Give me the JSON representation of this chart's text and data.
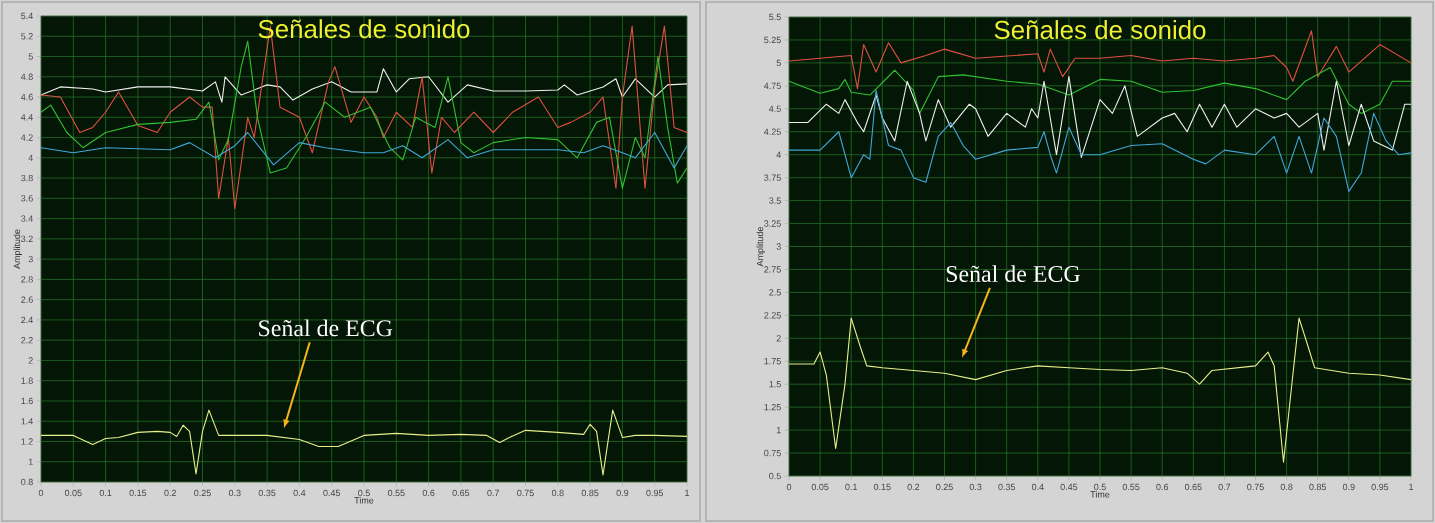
{
  "chart_data": [
    {
      "type": "line",
      "title": "Señales de sonido",
      "xlabel": "Time",
      "ylabel": "Amplitude",
      "xlim": [
        0,
        1
      ],
      "ylim": [
        0.8,
        5.4
      ],
      "grid": true,
      "xticks": [
        0,
        0.05,
        0.1,
        0.15,
        0.2,
        0.25,
        0.3,
        0.35,
        0.4,
        0.45,
        0.5,
        0.55,
        0.6,
        0.65,
        0.7,
        0.75,
        0.8,
        0.85,
        0.9,
        0.95,
        1
      ],
      "yticks": [
        0.8,
        1,
        1.2,
        1.4,
        1.6,
        1.8,
        2,
        2.2,
        2.4,
        2.6,
        2.8,
        3,
        3.2,
        3.4,
        3.6,
        3.8,
        4,
        4.2,
        4.4,
        4.6,
        4.8,
        5,
        5.2,
        5.4
      ],
      "series": [
        {
          "color": "#f0f0f0",
          "x": [
            0,
            0.03,
            0.08,
            0.1,
            0.15,
            0.2,
            0.25,
            0.27,
            0.28,
            0.285,
            0.31,
            0.35,
            0.37,
            0.39,
            0.42,
            0.45,
            0.48,
            0.52,
            0.53,
            0.55,
            0.57,
            0.6,
            0.63,
            0.66,
            0.7,
            0.75,
            0.8,
            0.81,
            0.83,
            0.87,
            0.89,
            0.9,
            0.92,
            0.95,
            0.97,
            1
          ],
          "values": [
            4.62,
            4.7,
            4.68,
            4.65,
            4.7,
            4.7,
            4.66,
            4.75,
            4.55,
            4.8,
            4.62,
            4.72,
            4.7,
            4.57,
            4.68,
            4.75,
            4.65,
            4.65,
            4.88,
            4.65,
            4.78,
            4.8,
            4.55,
            4.72,
            4.66,
            4.66,
            4.67,
            4.72,
            4.62,
            4.7,
            4.78,
            4.6,
            4.78,
            4.6,
            4.72,
            4.73
          ]
        },
        {
          "color": "#e05040",
          "x": [
            0,
            0.03,
            0.06,
            0.08,
            0.1,
            0.12,
            0.15,
            0.18,
            0.2,
            0.23,
            0.25,
            0.265,
            0.275,
            0.29,
            0.3,
            0.32,
            0.33,
            0.355,
            0.37,
            0.4,
            0.42,
            0.445,
            0.455,
            0.48,
            0.5,
            0.52,
            0.53,
            0.55,
            0.575,
            0.59,
            0.605,
            0.62,
            0.64,
            0.67,
            0.7,
            0.73,
            0.77,
            0.8,
            0.82,
            0.85,
            0.87,
            0.89,
            0.9,
            0.915,
            0.935,
            0.95,
            0.965,
            0.98,
            1
          ],
          "values": [
            4.62,
            4.6,
            4.25,
            4.3,
            4.45,
            4.65,
            4.32,
            4.25,
            4.45,
            4.6,
            4.5,
            4.5,
            3.6,
            4.2,
            3.5,
            4.4,
            4.2,
            5.3,
            4.5,
            4.4,
            4.05,
            4.75,
            4.9,
            4.35,
            4.6,
            4.4,
            4.2,
            4.45,
            4.3,
            4.8,
            3.85,
            4.4,
            4.25,
            4.45,
            4.25,
            4.45,
            4.6,
            4.3,
            4.35,
            4.45,
            4.6,
            3.7,
            4.6,
            5.3,
            3.7,
            4.7,
            5.3,
            4.3,
            4.25
          ]
        },
        {
          "color": "#30c030",
          "x": [
            0,
            0.015,
            0.04,
            0.065,
            0.1,
            0.15,
            0.2,
            0.24,
            0.26,
            0.275,
            0.29,
            0.31,
            0.32,
            0.335,
            0.355,
            0.38,
            0.41,
            0.44,
            0.47,
            0.51,
            0.54,
            0.56,
            0.58,
            0.61,
            0.63,
            0.65,
            0.67,
            0.7,
            0.75,
            0.8,
            0.83,
            0.86,
            0.88,
            0.9,
            0.92,
            0.935,
            0.955,
            0.97,
            0.985,
            1
          ],
          "values": [
            4.45,
            4.52,
            4.25,
            4.1,
            4.25,
            4.33,
            4.35,
            4.38,
            4.55,
            3.98,
            4.18,
            4.9,
            5.15,
            4.4,
            3.85,
            3.9,
            4.2,
            4.55,
            4.4,
            4.5,
            4.1,
            3.98,
            4.4,
            4.3,
            4.8,
            4.15,
            4.05,
            4.15,
            4.2,
            4.18,
            4,
            4.35,
            4.4,
            3.7,
            4.2,
            4,
            5,
            4.3,
            3.75,
            3.9
          ]
        },
        {
          "color": "#40a8d8",
          "x": [
            0,
            0.05,
            0.1,
            0.2,
            0.23,
            0.27,
            0.3,
            0.32,
            0.36,
            0.4,
            0.44,
            0.5,
            0.53,
            0.56,
            0.59,
            0.63,
            0.66,
            0.7,
            0.8,
            0.84,
            0.87,
            0.9,
            0.92,
            0.95,
            0.98,
            1
          ],
          "values": [
            4.1,
            4.05,
            4.1,
            4.08,
            4.15,
            4,
            4.12,
            4.25,
            3.93,
            4.15,
            4.1,
            4.05,
            4.05,
            4.12,
            4,
            4.18,
            4,
            4.08,
            4.08,
            4.05,
            4.12,
            4.05,
            4,
            4.25,
            3.9,
            4.12
          ]
        },
        {
          "color": "#e8f08a",
          "x": [
            0,
            0.05,
            0.08,
            0.1,
            0.12,
            0.15,
            0.18,
            0.2,
            0.21,
            0.22,
            0.23,
            0.24,
            0.25,
            0.26,
            0.275,
            0.3,
            0.35,
            0.4,
            0.43,
            0.46,
            0.5,
            0.55,
            0.6,
            0.65,
            0.69,
            0.71,
            0.725,
            0.75,
            0.8,
            0.84,
            0.85,
            0.86,
            0.87,
            0.88,
            0.885,
            0.9,
            0.92,
            0.95,
            1
          ],
          "values": [
            1.26,
            1.26,
            1.17,
            1.23,
            1.24,
            1.29,
            1.3,
            1.29,
            1.25,
            1.36,
            1.3,
            0.88,
            1.3,
            1.51,
            1.26,
            1.26,
            1.26,
            1.22,
            1.15,
            1.15,
            1.26,
            1.28,
            1.26,
            1.27,
            1.26,
            1.19,
            1.24,
            1.31,
            1.29,
            1.27,
            1.37,
            1.3,
            0.87,
            1.3,
            1.51,
            1.24,
            1.26,
            1.26,
            1.25
          ]
        }
      ],
      "annotations": [
        "Señal de ECG"
      ]
    },
    {
      "type": "line",
      "title": "Señales de sonido",
      "xlabel": "Time",
      "ylabel": "Amplitude",
      "xlim": [
        0,
        1
      ],
      "ylim": [
        0.5,
        5.5
      ],
      "grid": true,
      "xticks": [
        0,
        0.05,
        0.1,
        0.15,
        0.2,
        0.25,
        0.3,
        0.35,
        0.4,
        0.45,
        0.5,
        0.55,
        0.6,
        0.65,
        0.7,
        0.75,
        0.8,
        0.85,
        0.9,
        0.95,
        1
      ],
      "yticks": [
        0.5,
        0.75,
        1,
        1.25,
        1.5,
        1.75,
        2,
        2.25,
        2.5,
        2.75,
        3,
        3.25,
        3.5,
        3.75,
        4,
        4.25,
        4.5,
        4.75,
        5,
        5.25,
        5.5
      ],
      "series": [
        {
          "color": "#e05040",
          "x": [
            0,
            0.05,
            0.1,
            0.11,
            0.12,
            0.14,
            0.16,
            0.18,
            0.22,
            0.25,
            0.3,
            0.4,
            0.41,
            0.42,
            0.44,
            0.46,
            0.5,
            0.55,
            0.6,
            0.65,
            0.7,
            0.75,
            0.78,
            0.8,
            0.81,
            0.84,
            0.85,
            0.88,
            0.9,
            0.95,
            1
          ],
          "values": [
            5.02,
            5.05,
            5.08,
            4.72,
            5.2,
            4.9,
            5.22,
            5,
            5.08,
            5.15,
            5.05,
            5.1,
            4.9,
            5.15,
            4.85,
            5.05,
            5.05,
            5.08,
            5.02,
            5.05,
            5.02,
            5.05,
            5.08,
            4.95,
            4.8,
            5.35,
            4.85,
            5.18,
            4.9,
            5.2,
            5
          ]
        },
        {
          "color": "#30c030",
          "x": [
            0,
            0.05,
            0.08,
            0.09,
            0.1,
            0.13,
            0.17,
            0.2,
            0.21,
            0.24,
            0.28,
            0.35,
            0.4,
            0.45,
            0.5,
            0.55,
            0.6,
            0.65,
            0.7,
            0.75,
            0.8,
            0.83,
            0.87,
            0.9,
            0.92,
            0.95,
            0.97,
            1
          ],
          "values": [
            4.8,
            4.67,
            4.72,
            4.82,
            4.68,
            4.65,
            4.92,
            4.7,
            4.45,
            4.85,
            4.87,
            4.8,
            4.77,
            4.65,
            4.82,
            4.8,
            4.68,
            4.7,
            4.78,
            4.72,
            4.6,
            4.8,
            4.95,
            4.55,
            4.45,
            4.55,
            4.8,
            4.8
          ]
        },
        {
          "color": "#f0f0f0",
          "x": [
            0,
            0.03,
            0.06,
            0.08,
            0.09,
            0.11,
            0.12,
            0.14,
            0.15,
            0.17,
            0.19,
            0.21,
            0.22,
            0.24,
            0.26,
            0.29,
            0.3,
            0.32,
            0.35,
            0.38,
            0.39,
            0.4,
            0.41,
            0.43,
            0.45,
            0.47,
            0.5,
            0.52,
            0.54,
            0.56,
            0.6,
            0.62,
            0.64,
            0.66,
            0.68,
            0.7,
            0.72,
            0.75,
            0.78,
            0.8,
            0.82,
            0.85,
            0.86,
            0.88,
            0.9,
            0.92,
            0.94,
            0.97,
            0.99,
            1
          ],
          "values": [
            4.35,
            4.35,
            4.55,
            4.45,
            4.6,
            4.35,
            4.25,
            4.65,
            4.4,
            4.15,
            4.8,
            4.45,
            4.15,
            4.6,
            4.3,
            4.55,
            4.5,
            4.2,
            4.45,
            4.3,
            4.5,
            4.4,
            4.8,
            4,
            4.85,
            3.97,
            4.6,
            4.45,
            4.75,
            4.2,
            4.4,
            4.45,
            4.25,
            4.55,
            4.3,
            4.55,
            4.3,
            4.5,
            4.4,
            4.45,
            4.3,
            4.45,
            4.05,
            4.8,
            4.1,
            4.55,
            4.15,
            4.05,
            4.55,
            4.55
          ]
        },
        {
          "color": "#40a8d8",
          "x": [
            0,
            0.05,
            0.08,
            0.1,
            0.12,
            0.13,
            0.14,
            0.16,
            0.18,
            0.2,
            0.22,
            0.24,
            0.26,
            0.28,
            0.3,
            0.35,
            0.4,
            0.41,
            0.42,
            0.43,
            0.45,
            0.47,
            0.5,
            0.55,
            0.6,
            0.62,
            0.65,
            0.67,
            0.7,
            0.75,
            0.78,
            0.8,
            0.82,
            0.84,
            0.86,
            0.88,
            0.9,
            0.92,
            0.94,
            0.96,
            0.98,
            1
          ],
          "values": [
            4.05,
            4.05,
            4.25,
            3.75,
            4,
            3.95,
            4.7,
            4.1,
            4.05,
            3.75,
            3.7,
            4.2,
            4.35,
            4.1,
            3.95,
            4.05,
            4.08,
            4.25,
            4,
            3.8,
            4.3,
            4,
            4,
            4.1,
            4.12,
            4.05,
            3.95,
            3.9,
            4.05,
            4,
            4.2,
            3.8,
            4.2,
            3.8,
            4.4,
            4.2,
            3.6,
            3.8,
            4.45,
            4.15,
            4,
            4.02
          ]
        },
        {
          "color": "#e8f08a",
          "x": [
            0,
            0.04,
            0.05,
            0.06,
            0.075,
            0.09,
            0.1,
            0.115,
            0.125,
            0.15,
            0.2,
            0.25,
            0.3,
            0.35,
            0.4,
            0.45,
            0.5,
            0.55,
            0.6,
            0.64,
            0.66,
            0.68,
            0.75,
            0.77,
            0.78,
            0.795,
            0.81,
            0.82,
            0.835,
            0.845,
            0.9,
            0.95,
            1
          ],
          "values": [
            1.72,
            1.72,
            1.85,
            1.6,
            0.8,
            1.5,
            2.22,
            1.9,
            1.7,
            1.68,
            1.65,
            1.62,
            1.55,
            1.65,
            1.7,
            1.68,
            1.66,
            1.65,
            1.68,
            1.62,
            1.5,
            1.65,
            1.7,
            1.85,
            1.7,
            0.65,
            1.6,
            2.22,
            1.9,
            1.68,
            1.62,
            1.6,
            1.55
          ]
        }
      ],
      "annotations": [
        "Señal de ECG"
      ]
    }
  ]
}
